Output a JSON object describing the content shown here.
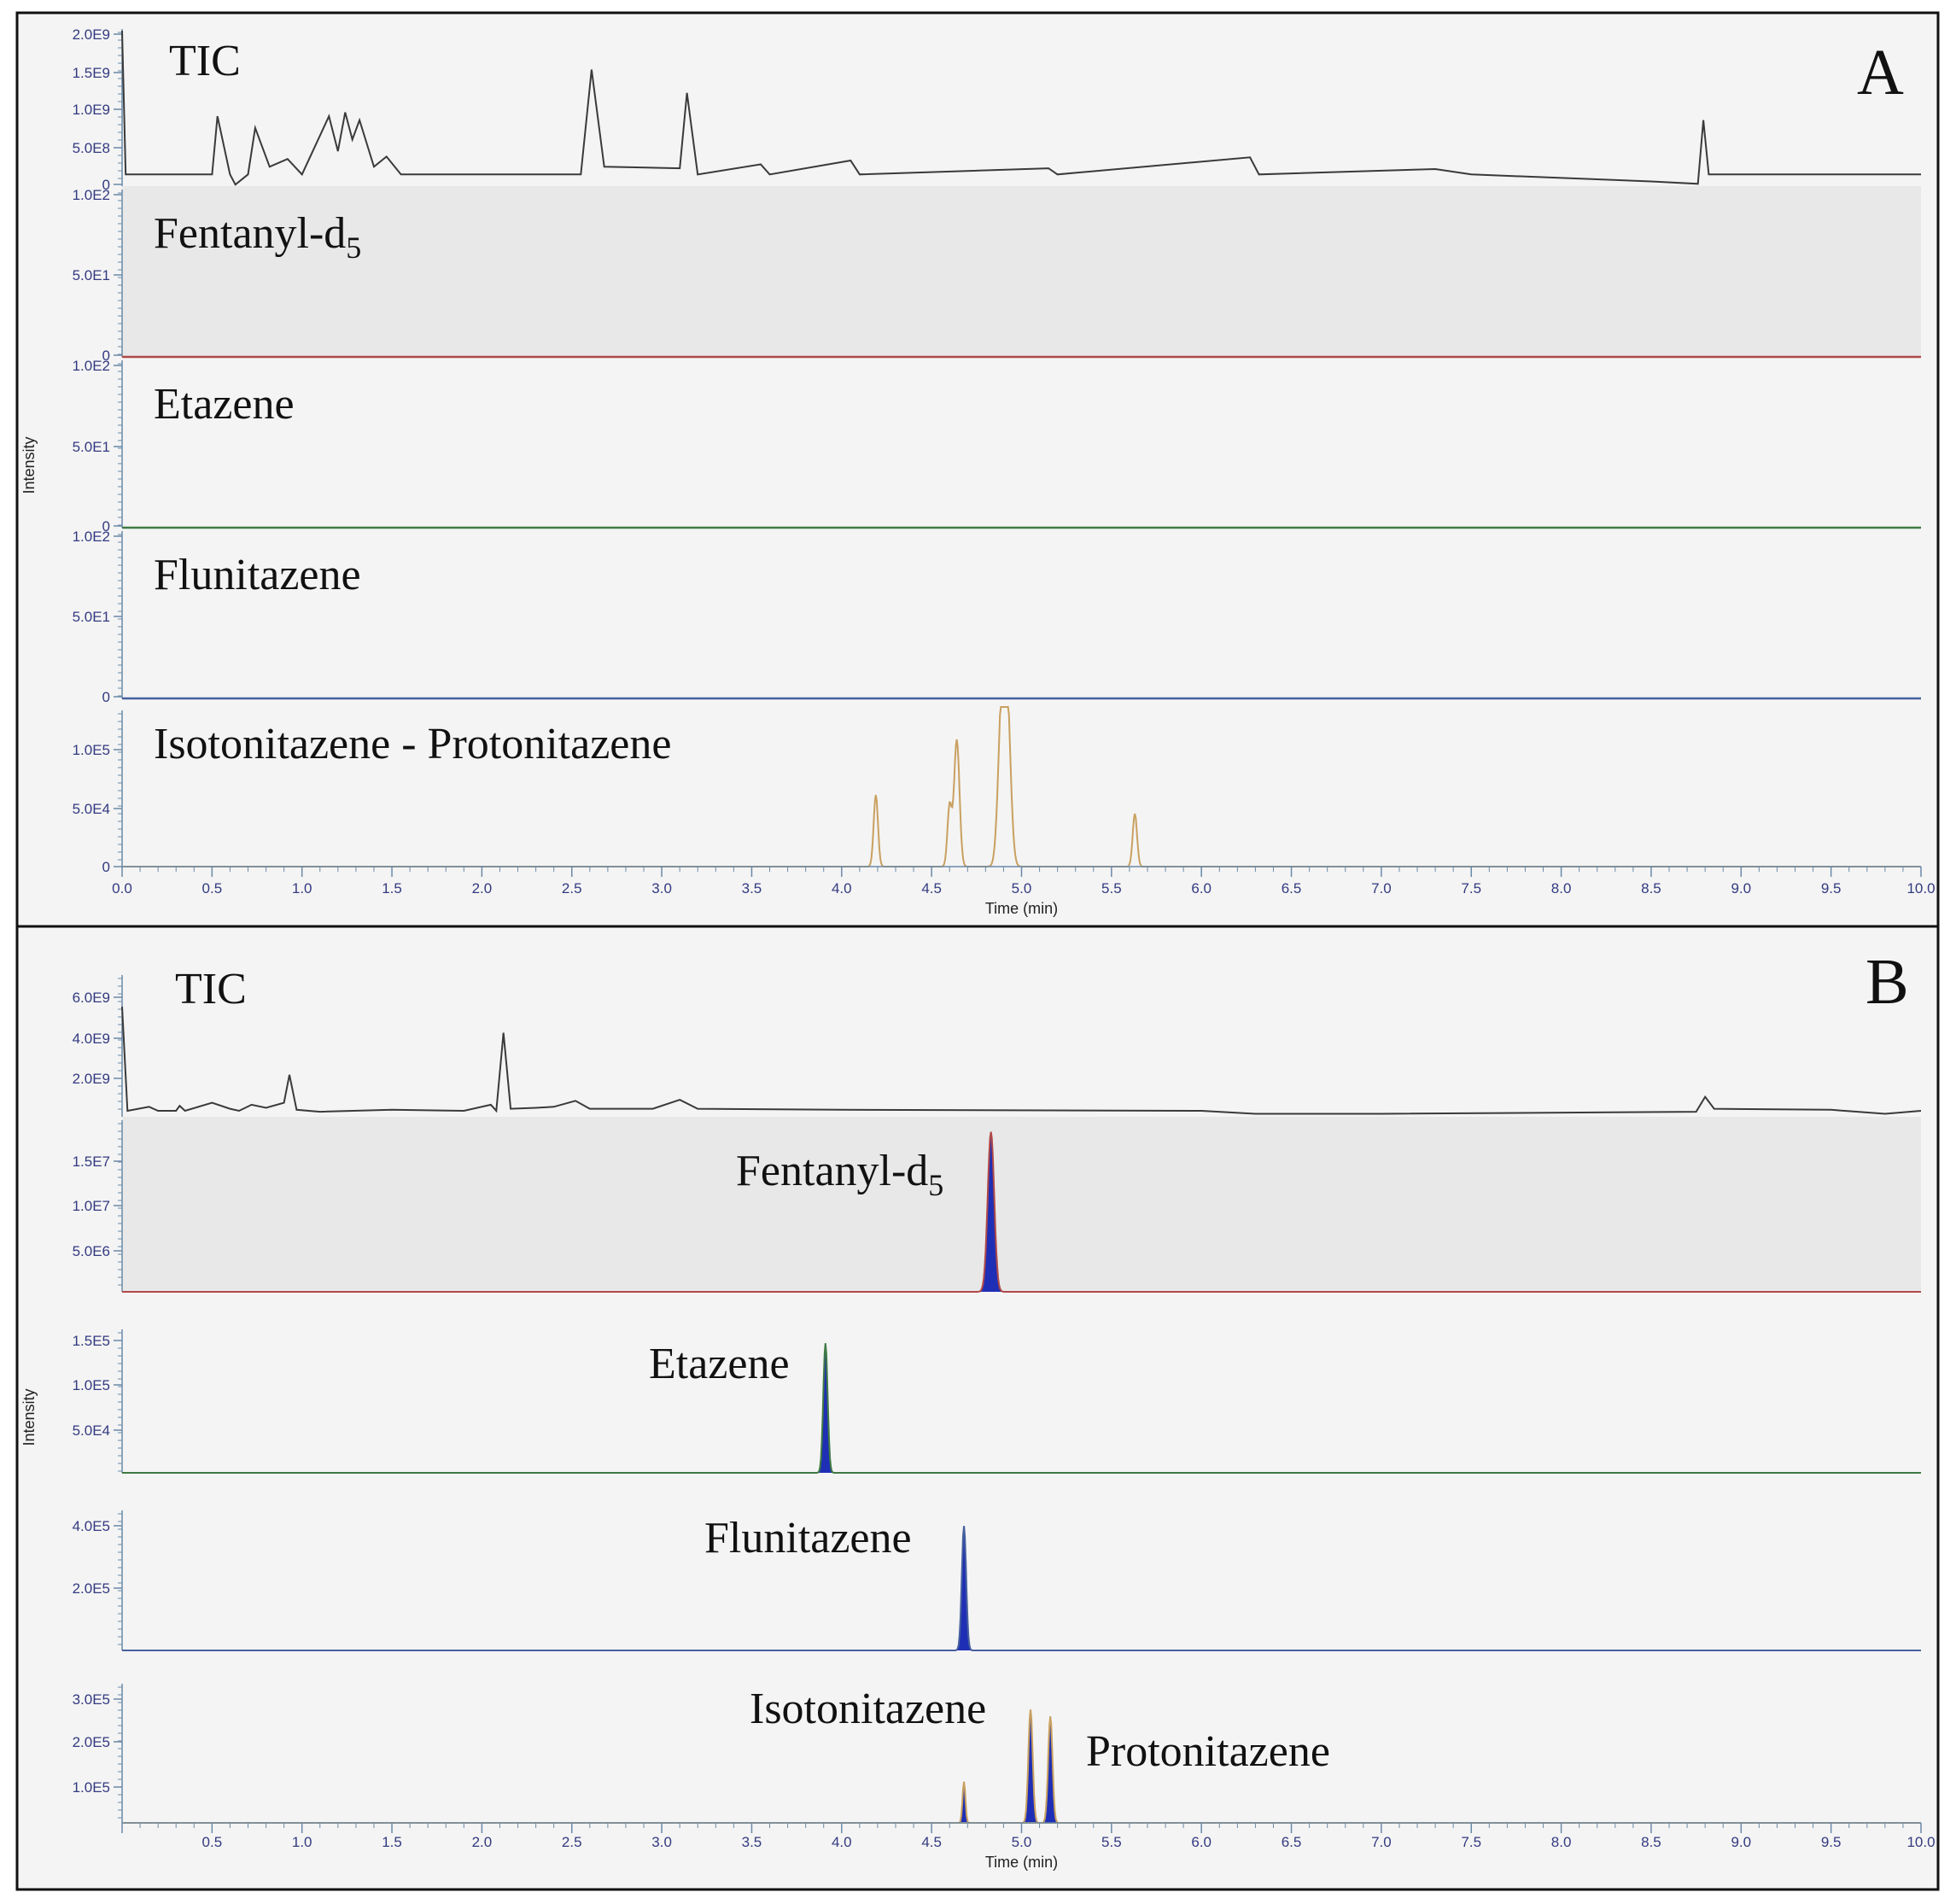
{
  "panels": [
    {
      "letter": "A",
      "x_axis_label": "Time (min)",
      "y_axis_label": "Intensity",
      "x_ticks": [
        "0.0",
        "0.5",
        "1.0",
        "1.5",
        "2.0",
        "2.5",
        "3.0",
        "3.5",
        "4.0",
        "4.5",
        "5.0",
        "5.5",
        "6.0",
        "6.5",
        "7.0",
        "7.5",
        "8.0",
        "8.5",
        "9.0",
        "9.5",
        "10.0"
      ],
      "tracks": [
        {
          "label": "TIC",
          "label_sub": "",
          "y_ticks": [
            "2.0E9",
            "1.5E9",
            "1.0E9",
            "5.0E8",
            "0"
          ],
          "shaded": false,
          "line_color": "#3a3a3a"
        },
        {
          "label": "Fentanyl-d",
          "label_sub": "5",
          "y_ticks": [
            "1.0E2",
            "5.0E1",
            "0"
          ],
          "shaded": true,
          "line_color": "#b04848"
        },
        {
          "label": "Etazene",
          "label_sub": "",
          "y_ticks": [
            "1.0E2",
            "5.0E1",
            "0"
          ],
          "shaded": false,
          "line_color": "#3f7a44"
        },
        {
          "label": "Flunitazene",
          "label_sub": "",
          "y_ticks": [
            "1.0E2",
            "5.0E1",
            "0"
          ],
          "shaded": false,
          "line_color": "#46609e"
        },
        {
          "label": "Isotonitazene - Protonitazene",
          "label_sub": "",
          "y_ticks": [
            "1.0E5",
            "5.0E4",
            "0"
          ],
          "shaded": false,
          "line_color": "#c9a060"
        }
      ]
    },
    {
      "letter": "B",
      "x_axis_label": "Time (min)",
      "y_axis_label": "Intensity",
      "x_ticks": [
        "",
        "0.5",
        "1.0",
        "1.5",
        "2.0",
        "2.5",
        "3.0",
        "3.5",
        "4.0",
        "4.5",
        "5.0",
        "5.5",
        "6.0",
        "6.5",
        "7.0",
        "7.5",
        "8.0",
        "8.5",
        "9.0",
        "9.5",
        "10.0"
      ],
      "tracks": [
        {
          "label": "TIC",
          "label_sub": "",
          "y_ticks": [
            "6.0E9",
            "4.0E9",
            "2.0E9"
          ],
          "shaded": false,
          "line_color": "#3a3a3a"
        },
        {
          "label": "Fentanyl-d",
          "label_sub": "5",
          "y_ticks": [
            "1.5E7",
            "1.0E7",
            "5.0E6"
          ],
          "shaded": true,
          "line_color": "#b04848"
        },
        {
          "label": "Etazene",
          "label_sub": "",
          "y_ticks": [
            "1.5E5",
            "1.0E5",
            "5.0E4"
          ],
          "shaded": false,
          "line_color": "#3f7a44"
        },
        {
          "label": "Flunitazene",
          "label_sub": "",
          "y_ticks": [
            "4.0E5",
            "2.0E5"
          ],
          "shaded": false,
          "line_color": "#46609e"
        },
        {
          "label": "Isotonitazene",
          "label_sub": "",
          "extra_label": "Protonitazene",
          "y_ticks": [
            "3.0E5",
            "2.0E5",
            "1.0E5"
          ],
          "shaded": false,
          "line_color": "#c9a060"
        }
      ]
    }
  ],
  "chart_data": [
    {
      "type": "line",
      "panel": "A",
      "xlabel": "Time (min)",
      "ylabel": "Intensity",
      "xlim": [
        0,
        10
      ],
      "series": [
        {
          "name": "TIC",
          "ylim": [
            0,
            2000000000
          ],
          "baseline": 150000000,
          "points": [
            [
              0.0,
              2000000000
            ],
            [
              0.02,
              150000000
            ],
            [
              0.5,
              150000000
            ],
            [
              0.53,
              900000000
            ],
            [
              0.6,
              150000000
            ],
            [
              0.63,
              20000000
            ],
            [
              0.7,
              150000000
            ],
            [
              0.74,
              750000000
            ],
            [
              0.82,
              250000000
            ],
            [
              0.92,
              350000000
            ],
            [
              1.0,
              150000000
            ],
            [
              1.15,
              900000000
            ],
            [
              1.2,
              450000000
            ],
            [
              1.24,
              950000000
            ],
            [
              1.28,
              600000000
            ],
            [
              1.32,
              850000000
            ],
            [
              1.4,
              250000000
            ],
            [
              1.47,
              380000000
            ],
            [
              1.55,
              150000000
            ],
            [
              2.55,
              150000000
            ],
            [
              2.61,
              1500000000
            ],
            [
              2.68,
              250000000
            ],
            [
              3.1,
              230000000
            ],
            [
              3.14,
              1200000000
            ],
            [
              3.2,
              150000000
            ],
            [
              3.55,
              280000000
            ],
            [
              3.6,
              150000000
            ],
            [
              4.05,
              330000000
            ],
            [
              4.1,
              150000000
            ],
            [
              5.15,
              230000000
            ],
            [
              5.2,
              150000000
            ],
            [
              6.27,
              370000000
            ],
            [
              6.32,
              150000000
            ],
            [
              7.3,
              220000000
            ],
            [
              7.5,
              150000000
            ],
            [
              8.5,
              60000000
            ],
            [
              8.76,
              30000000
            ],
            [
              8.79,
              850000000
            ],
            [
              8.82,
              150000000
            ],
            [
              10.0,
              150000000
            ]
          ]
        },
        {
          "name": "Fentanyl-d5",
          "ylim": [
            0,
            100
          ],
          "points": [
            [
              0,
              0
            ],
            [
              10,
              0
            ]
          ]
        },
        {
          "name": "Etazene",
          "ylim": [
            0,
            100
          ],
          "points": [
            [
              0,
              0
            ],
            [
              10,
              0
            ]
          ]
        },
        {
          "name": "Flunitazene",
          "ylim": [
            0,
            100
          ],
          "points": [
            [
              0,
              0
            ],
            [
              10,
              0
            ]
          ]
        },
        {
          "name": "Isotonitazene - Protonitazene",
          "ylim": [
            0,
            140000
          ],
          "baseline": 0,
          "peaks": [
            [
              4.19,
              65000,
              0.012
            ],
            [
              4.6,
              55000,
              0.012
            ],
            [
              4.64,
              115000,
              0.015
            ],
            [
              4.89,
              135000,
              0.02
            ],
            [
              4.92,
              135000,
              0.02
            ],
            [
              5.63,
              48000,
              0.012
            ]
          ]
        }
      ]
    },
    {
      "type": "line",
      "panel": "B",
      "xlabel": "Time (min)",
      "ylabel": "Intensity",
      "xlim": [
        0,
        10
      ],
      "series": [
        {
          "name": "TIC",
          "ylim": [
            0,
            7000000000
          ],
          "baseline": 300000000,
          "points": [
            [
              0.0,
              5500000000
            ],
            [
              0.03,
              300000000
            ],
            [
              0.15,
              500000000
            ],
            [
              0.2,
              300000000
            ],
            [
              0.3,
              300000000
            ],
            [
              0.32,
              550000000
            ],
            [
              0.35,
              300000000
            ],
            [
              0.5,
              700000000
            ],
            [
              0.6,
              400000000
            ],
            [
              0.65,
              300000000
            ],
            [
              0.72,
              600000000
            ],
            [
              0.8,
              450000000
            ],
            [
              0.9,
              700000000
            ],
            [
              0.93,
              2100000000
            ],
            [
              0.97,
              350000000
            ],
            [
              1.1,
              250000000
            ],
            [
              1.5,
              350000000
            ],
            [
              1.9,
              300000000
            ],
            [
              2.05,
              600000000
            ],
            [
              2.08,
              300000000
            ],
            [
              2.12,
              4200000000
            ],
            [
              2.16,
              400000000
            ],
            [
              2.3,
              450000000
            ],
            [
              2.4,
              500000000
            ],
            [
              2.52,
              800000000
            ],
            [
              2.6,
              400000000
            ],
            [
              2.95,
              400000000
            ],
            [
              3.1,
              850000000
            ],
            [
              3.2,
              400000000
            ],
            [
              4.0,
              350000000
            ],
            [
              6.0,
              300000000
            ],
            [
              6.3,
              150000000
            ],
            [
              7.0,
              150000000
            ],
            [
              8.75,
              250000000
            ],
            [
              8.8,
              1000000000
            ],
            [
              8.85,
              400000000
            ],
            [
              9.5,
              350000000
            ],
            [
              9.8,
              150000000
            ],
            [
              10.0,
              300000000
            ]
          ]
        },
        {
          "name": "Fentanyl-d5",
          "ylim": [
            0,
            17000000
          ],
          "baseline": 0,
          "peaks": [
            [
              4.83,
              16000000,
              0.018
            ]
          ]
        },
        {
          "name": "Etazene",
          "ylim": [
            0,
            175000
          ],
          "baseline": 0,
          "peaks": [
            [
              3.91,
              160000,
              0.012
            ]
          ]
        },
        {
          "name": "Flunitazene",
          "ylim": [
            0,
            500000
          ],
          "baseline": 0,
          "peaks": [
            [
              4.68,
              450000,
              0.012
            ]
          ]
        },
        {
          "name": "Isotonitazene",
          "ylim": [
            0,
            400000
          ],
          "baseline": 0,
          "peaks": [
            [
              4.68,
              120000,
              0.008
            ],
            [
              5.05,
              330000,
              0.012
            ]
          ]
        },
        {
          "name": "Protonitazene",
          "ylim": [
            0,
            400000
          ],
          "baseline": 0,
          "peaks": [
            [
              5.16,
              310000,
              0.012
            ]
          ]
        }
      ]
    }
  ]
}
